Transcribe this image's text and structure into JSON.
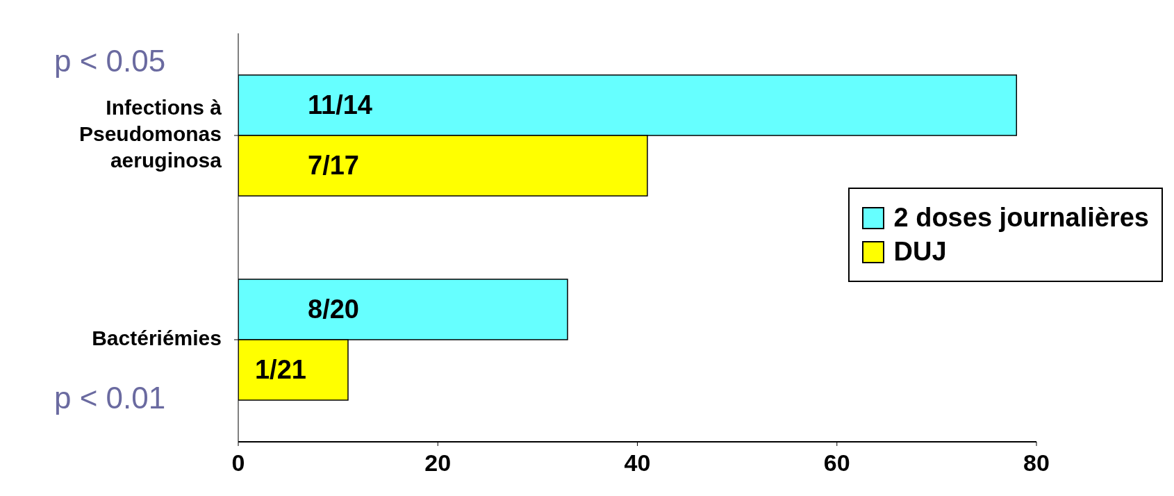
{
  "chart_data": {
    "type": "bar",
    "orientation": "horizontal",
    "categories": [
      "Infections à Pseudomonas aeruginosa",
      "Bactériémies"
    ],
    "series": [
      {
        "name": "2 doses journalières",
        "color": "#66ffff",
        "values": [
          78,
          33
        ],
        "value_labels": [
          "11/14",
          "8/20"
        ]
      },
      {
        "name": "DUJ",
        "color": "#ffff00",
        "values": [
          41,
          11
        ],
        "value_labels": [
          "7/17",
          "1/21"
        ]
      }
    ],
    "xlim": [
      0,
      80
    ],
    "xticks": [
      0,
      20,
      40,
      60,
      80
    ],
    "legend": "right",
    "annotations": [
      "p < 0.05",
      "p < 0.01"
    ]
  }
}
